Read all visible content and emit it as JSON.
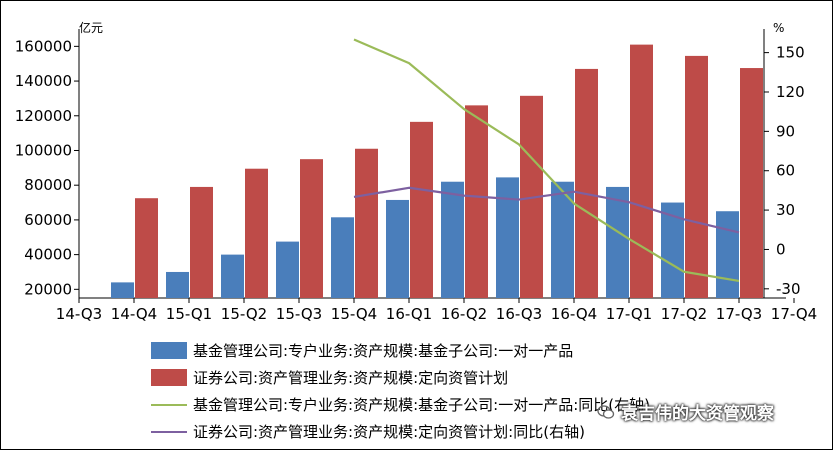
{
  "chart_data": {
    "type": "bar",
    "categories": [
      "14-Q3",
      "14-Q4",
      "15-Q1",
      "15-Q2",
      "15-Q3",
      "15-Q4",
      "16-Q1",
      "16-Q2",
      "16-Q3",
      "16-Q4",
      "17-Q1",
      "17-Q2",
      "17-Q3",
      "17-Q4"
    ],
    "left_axis": {
      "unit": "亿元",
      "ylim": [
        15000,
        170000
      ],
      "ticks": [
        20000,
        40000,
        60000,
        80000,
        100000,
        120000,
        140000,
        160000
      ]
    },
    "right_axis": {
      "unit": "%",
      "ylim": [
        -37,
        168
      ],
      "ticks": [
        -30,
        0,
        30,
        60,
        90,
        120,
        150
      ]
    },
    "series": [
      {
        "name": "基金管理公司:专户业务:资产规模:基金子公司:一对一产品",
        "kind": "bar",
        "axis": "left",
        "color": "#4a7ebb",
        "values": [
          null,
          24000,
          30000,
          40000,
          47500,
          61500,
          71500,
          82000,
          84500,
          82000,
          79000,
          70000,
          65000,
          null
        ]
      },
      {
        "name": "证券公司:资产管理业务:资产规模:定向资管计划",
        "kind": "bar",
        "axis": "left",
        "color": "#be4b48",
        "values": [
          null,
          72500,
          79000,
          89500,
          95000,
          101000,
          116500,
          126000,
          131500,
          147000,
          161000,
          154500,
          147500,
          null
        ]
      },
      {
        "name": "基金管理公司:专户业务:资产规模:基金子公司:一对一产品:同比(右轴)",
        "kind": "line",
        "axis": "right",
        "color": "#9bbb59",
        "values": [
          null,
          null,
          null,
          null,
          null,
          160,
          142,
          107,
          80,
          35,
          8,
          -17,
          -24,
          null
        ]
      },
      {
        "name": "证券公司:资产管理业务:资产规模:定向资管计划:同比(右轴)",
        "kind": "line",
        "axis": "right",
        "color": "#7d60a0",
        "values": [
          null,
          null,
          null,
          null,
          null,
          40,
          47,
          41,
          38,
          44,
          36,
          23,
          13,
          null
        ]
      }
    ],
    "legend_position": "bottom",
    "grid": false
  },
  "legend": [
    {
      "label": "基金管理公司:专户业务:资产规模:基金子公司:一对一产品",
      "type": "box",
      "color": "#4a7ebb"
    },
    {
      "label": "证券公司:资产管理业务:资产规模:定向资管计划",
      "type": "box",
      "color": "#be4b48"
    },
    {
      "label": "基金管理公司:专户业务:资产规模:基金子公司:一对一产品:同比(右轴)",
      "type": "line",
      "color": "#9bbb59"
    },
    {
      "label": "证券公司:资产管理业务:资产规模:定向资管计划:同比(右轴)",
      "type": "line",
      "color": "#7d60a0"
    }
  ],
  "watermark": {
    "text": "袁吉伟的大资管观察",
    "icon": "wechat-icon"
  }
}
